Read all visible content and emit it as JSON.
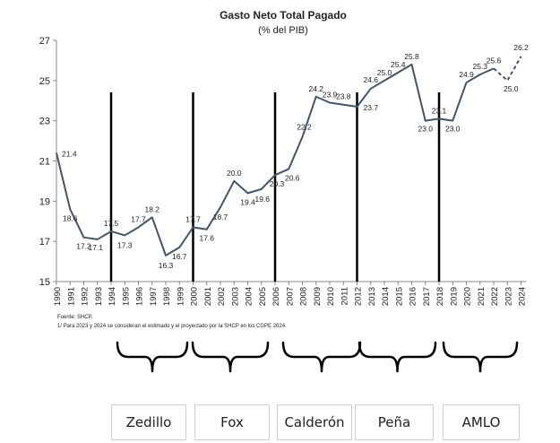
{
  "chart_data": {
    "type": "line",
    "title": "Gasto Neto Total Pagado",
    "subtitle": "(% del PIB)",
    "x": [
      "1990",
      "1991",
      "1992",
      "1993",
      "1994",
      "1995",
      "1996",
      "1997",
      "1998",
      "1999",
      "2000",
      "2001",
      "2002",
      "2003",
      "2004",
      "2005",
      "2006",
      "2007",
      "2008",
      "2009",
      "2010",
      "2011",
      "2012",
      "2013",
      "2014",
      "2015",
      "2016",
      "2017",
      "2018",
      "2019",
      "2020",
      "2021",
      "2022",
      "2023",
      "2024"
    ],
    "values": [
      21.4,
      18.6,
      17.2,
      17.1,
      17.5,
      17.3,
      17.7,
      18.2,
      16.3,
      16.7,
      17.7,
      17.6,
      18.7,
      20.0,
      19.4,
      19.6,
      20.3,
      20.6,
      22.2,
      24.2,
      23.9,
      23.8,
      23.7,
      24.6,
      25.0,
      25.4,
      25.8,
      23.0,
      23.1,
      23.0,
      24.9,
      25.3,
      25.6,
      25.0,
      26.2
    ],
    "dashed_from": "2022",
    "ylim": [
      15,
      27
    ],
    "yticks": [
      "15",
      "17",
      "19",
      "21",
      "23",
      "25",
      "27"
    ],
    "grid": false,
    "period_dividers": [
      "1994",
      "2000",
      "2006",
      "2012",
      "2018"
    ],
    "source": "Fuente: SHCP.",
    "footnote": "1/ Para 2023 y 2024 se consideran el estimado y el proyectado por la SHCP en los CGPE 2024.",
    "line_color": "#44546a"
  },
  "administrations": [
    "Zedillo",
    "Fox",
    "Calderón",
    "Peña",
    "AMLO"
  ]
}
